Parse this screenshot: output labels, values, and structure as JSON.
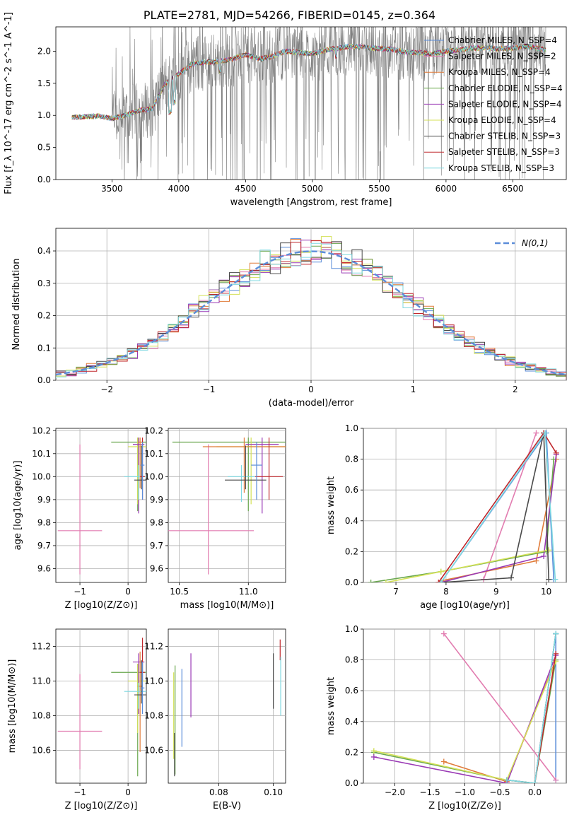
{
  "title": "PLATE=2781, MJD=54266, FIBERID=0145, z=0.364",
  "colors": {
    "axes": "#000000",
    "grid": "#b0b0b0",
    "spectrum_data": "#808080",
    "normal_curve": "#5b8dd9"
  },
  "chart_data": [
    {
      "id": "spectrum",
      "type": "line",
      "xlabel": "wavelength [Angstrom, rest frame]",
      "ylabel": "Flux [f_λ 10^-17 erg cm^-2 s^-1 A^-1]",
      "xlim": [
        3080,
        6900
      ],
      "ylim": [
        0,
        2.38
      ],
      "xticks": [
        3500,
        4000,
        4500,
        5000,
        5500,
        6000,
        6500
      ],
      "yticks": [
        0.0,
        0.5,
        1.0,
        1.5,
        2.0
      ],
      "grid": false,
      "legend_position": "upper right",
      "series": [
        {
          "name": "Chabrier MILES, N_SSP=4",
          "color": "#5b8dd9",
          "linewidth": 0.8
        },
        {
          "name": "Salpeter MILES, N_SSP=2",
          "color": "#e27cb0",
          "linewidth": 0.8
        },
        {
          "name": "Kroupa MILES, N_SSP=4",
          "color": "#e07b39",
          "linewidth": 0.8
        },
        {
          "name": "Chabrier ELODIE, N_SSP=4",
          "color": "#6aa84f",
          "linewidth": 0.8
        },
        {
          "name": "Salpeter ELODIE, N_SSP=4",
          "color": "#9a3ab5",
          "linewidth": 0.8
        },
        {
          "name": "Kroupa ELODIE, N_SSP=4",
          "color": "#d4e157",
          "linewidth": 0.8
        },
        {
          "name": "Chabrier STELIB, N_SSP=3",
          "color": "#4a4a4a",
          "linewidth": 0.8
        },
        {
          "name": "Salpeter STELIB, N_SSP=3",
          "color": "#c0282d",
          "linewidth": 0.8
        },
        {
          "name": "Kroupa STELIB, N_SSP=3",
          "color": "#7fd8e0",
          "linewidth": 0.8
        }
      ],
      "continuum_knots": {
        "x": [
          3200,
          3300,
          3400,
          3500,
          3600,
          3700,
          3800,
          3900,
          4000,
          4100,
          4200,
          4300,
          4400,
          4500,
          4600,
          4700,
          4800,
          4900,
          5000,
          5100,
          5200,
          5300,
          5400,
          5500,
          5600,
          5700,
          5800,
          5900,
          6000,
          6100,
          6200,
          6300,
          6400,
          6500,
          6600,
          6750
        ],
        "y": [
          0.97,
          0.98,
          0.99,
          0.95,
          1.0,
          1.08,
          1.1,
          1.5,
          1.65,
          1.8,
          1.83,
          1.84,
          1.88,
          1.95,
          1.88,
          1.92,
          2.0,
          1.98,
          1.96,
          2.02,
          2.05,
          2.08,
          2.06,
          2.04,
          2.03,
          1.98,
          1.98,
          1.96,
          2.0,
          2.02,
          2.05,
          2.05,
          2.04,
          2.05,
          2.08,
          2.02
        ]
      }
    },
    {
      "id": "residuals",
      "type": "bar",
      "xlabel": "(data-model)/error",
      "ylabel": "Normed distribution",
      "xlim": [
        -2.5,
        2.5
      ],
      "ylim": [
        0,
        0.47
      ],
      "xticks": [
        -2,
        -1,
        0,
        1,
        2
      ],
      "yticks": [
        0.0,
        0.1,
        0.2,
        0.3,
        0.4
      ],
      "grid": true,
      "legend_position": "upper right",
      "normal_curve_label": "N(0,1)",
      "bin_width": 0.1,
      "histogram_model": "N(0,1) with per-series deviations",
      "series_colors": [
        "#5b8dd9",
        "#e27cb0",
        "#e07b39",
        "#6aa84f",
        "#9a3ab5",
        "#d4e157",
        "#4a4a4a",
        "#c0282d",
        "#7fd8e0"
      ]
    },
    {
      "id": "age_vs_Z",
      "type": "scatter",
      "xlabel": "Z [log10(Z/Z⊙)]",
      "ylabel": "age [log10(age/yr)]",
      "xlim": [
        -1.5,
        0.38
      ],
      "ylim": [
        9.54,
        10.21
      ],
      "xticks": [
        -1,
        0
      ],
      "yticks": [
        9.6,
        9.7,
        9.8,
        9.9,
        10.0,
        10.1,
        10.2
      ],
      "grid": true,
      "points": [
        {
          "x": -1.0,
          "y": 9.765,
          "xerr": 0.46,
          "yerr_lo": 0.19,
          "yerr_hi": 0.375,
          "color": "#e27cb0"
        },
        {
          "x": 0.2,
          "y": 10.15,
          "xerr": 0.55,
          "yerr_lo": 0.3,
          "yerr_hi": 0.02,
          "color": "#6aa84f"
        },
        {
          "x": 0.2,
          "y": 10.13,
          "xerr": 0.2,
          "yerr_lo": 0.25,
          "yerr_hi": 0.04,
          "color": "#d4e157"
        },
        {
          "x": 0.22,
          "y": 10.14,
          "xerr": 0.12,
          "yerr_lo": 0.3,
          "yerr_hi": 0.03,
          "color": "#9a3ab5"
        },
        {
          "x": 0.25,
          "y": 10.15,
          "xerr": 0.05,
          "yerr_lo": 0.2,
          "yerr_hi": 0.02,
          "color": "#e07b39"
        },
        {
          "x": 0.22,
          "y": 10.0,
          "xerr": 0.3,
          "yerr_lo": 0.1,
          "yerr_hi": 0.05,
          "color": "#7fd8e0"
        },
        {
          "x": 0.28,
          "y": 9.985,
          "xerr": 0.15,
          "yerr_lo": 0.04,
          "yerr_hi": 0.15,
          "color": "#4a4a4a"
        },
        {
          "x": 0.3,
          "y": 10.0,
          "xerr": 0.05,
          "yerr_lo": 0.1,
          "yerr_hi": 0.17,
          "color": "#c0282d"
        },
        {
          "x": 0.3,
          "y": 10.05,
          "xerr": 0.04,
          "yerr_lo": 0.15,
          "yerr_hi": 0.1,
          "color": "#5b8dd9"
        }
      ]
    },
    {
      "id": "age_vs_mass",
      "type": "scatter",
      "xlabel": "mass [log10(M/M⊙)]",
      "ylabel": "",
      "xlim": [
        10.42,
        11.27
      ],
      "ylim": [
        9.54,
        10.21
      ],
      "xticks": [
        10.5,
        11.0
      ],
      "yticks": [
        9.6,
        9.7,
        9.8,
        9.9,
        10.0,
        10.1,
        10.2
      ],
      "grid": true,
      "points": [
        {
          "x": 10.71,
          "y": 9.765,
          "xerr": 0.33,
          "yerr_lo": 0.19,
          "yerr_hi": 0.375,
          "color": "#e27cb0"
        },
        {
          "x": 11.0,
          "y": 10.15,
          "xerr": 0.55,
          "yerr_lo": 0.3,
          "yerr_hi": 0.02,
          "color": "#6aa84f"
        },
        {
          "x": 11.02,
          "y": 10.13,
          "xerr": 0.25,
          "yerr_lo": 0.25,
          "yerr_hi": 0.04,
          "color": "#d4e157"
        },
        {
          "x": 11.1,
          "y": 10.14,
          "xerr": 0.12,
          "yerr_lo": 0.3,
          "yerr_hi": 0.03,
          "color": "#9a3ab5"
        },
        {
          "x": 10.97,
          "y": 10.13,
          "xerr": 0.3,
          "yerr_lo": 0.2,
          "yerr_hi": 0.04,
          "color": "#e07b39"
        },
        {
          "x": 10.95,
          "y": 10.0,
          "xerr": 0.1,
          "yerr_lo": 0.11,
          "yerr_hi": 0.05,
          "color": "#7fd8e0"
        },
        {
          "x": 10.98,
          "y": 9.985,
          "xerr": 0.15,
          "yerr_lo": 0.04,
          "yerr_hi": 0.15,
          "color": "#4a4a4a"
        },
        {
          "x": 11.15,
          "y": 10.0,
          "xerr": 0.1,
          "yerr_lo": 0.1,
          "yerr_hi": 0.17,
          "color": "#c0282d"
        },
        {
          "x": 11.06,
          "y": 10.05,
          "xerr": 0.04,
          "yerr_lo": 0.15,
          "yerr_hi": 0.1,
          "color": "#5b8dd9"
        }
      ]
    },
    {
      "id": "massweight_vs_age",
      "type": "line",
      "xlabel": "age [log10(age/yr)]",
      "ylabel": "mass weight",
      "xlim": [
        6.35,
        10.4
      ],
      "ylim": [
        0,
        1.0
      ],
      "xticks": [
        7,
        8,
        9,
        10
      ],
      "yticks": [
        0.0,
        0.2,
        0.4,
        0.6,
        0.8,
        1.0
      ],
      "grid": true,
      "series": [
        {
          "name": "Chabrier MILES",
          "color": "#5b8dd9",
          "x": [
            7.9,
            10.0,
            10.15
          ],
          "y": [
            0.0,
            0.97,
            0.02
          ]
        },
        {
          "name": "Salpeter MILES",
          "color": "#e27cb0",
          "x": [
            8.75,
            9.8
          ],
          "y": [
            0.02,
            0.97
          ]
        },
        {
          "name": "Kroupa MILES",
          "color": "#e07b39",
          "x": [
            7.9,
            9.8,
            10.2
          ],
          "y": [
            0.01,
            0.14,
            0.8
          ]
        },
        {
          "name": "Chabrier ELODIE",
          "color": "#6aa84f",
          "x": [
            6.5,
            7.9,
            10.0,
            10.15
          ],
          "y": [
            0.0,
            0.07,
            0.2,
            0.8
          ]
        },
        {
          "name": "Salpeter ELODIE",
          "color": "#9a3ab5",
          "x": [
            7.9,
            9.95,
            10.2
          ],
          "y": [
            0.0,
            0.17,
            0.83
          ]
        },
        {
          "name": "Kroupa ELODIE",
          "color": "#d4e157",
          "x": [
            6.8,
            7.9,
            10.05
          ],
          "y": [
            0.0,
            0.07,
            0.21
          ]
        },
        {
          "name": "Chabrier STELIB",
          "color": "#4a4a4a",
          "x": [
            7.9,
            9.3,
            9.95,
            10.05
          ],
          "y": [
            0.0,
            0.03,
            0.97,
            0.02
          ]
        },
        {
          "name": "Salpeter STELIB",
          "color": "#c0282d",
          "x": [
            7.85,
            9.95,
            10.2
          ],
          "y": [
            0.0,
            0.97,
            0.84
          ]
        },
        {
          "name": "Kroupa STELIB",
          "color": "#7fd8e0",
          "x": [
            7.9,
            9.98,
            10.18
          ],
          "y": [
            0.0,
            0.97,
            0.02
          ]
        }
      ]
    },
    {
      "id": "mass_vs_Z",
      "type": "scatter",
      "xlabel": "Z [log10(Z/Z⊙)]",
      "ylabel": "mass [log10(M/M⊙)]",
      "xlim": [
        -1.5,
        0.38
      ],
      "ylim": [
        10.41,
        11.3
      ],
      "xticks": [
        -1,
        0
      ],
      "yticks": [
        10.6,
        10.8,
        11.0,
        11.2
      ],
      "grid": true,
      "points": [
        {
          "x": -1.0,
          "y": 10.71,
          "xerr": 0.46,
          "yerr_lo": 0.22,
          "yerr_hi": 0.33,
          "color": "#e27cb0"
        },
        {
          "x": 0.2,
          "y": 11.05,
          "xerr": 0.55,
          "yerr_lo": 0.6,
          "yerr_hi": 0.05,
          "color": "#6aa84f"
        },
        {
          "x": 0.2,
          "y": 11.0,
          "xerr": 0.2,
          "yerr_lo": 0.3,
          "yerr_hi": 0.1,
          "color": "#d4e157"
        },
        {
          "x": 0.22,
          "y": 11.11,
          "xerr": 0.12,
          "yerr_lo": 0.3,
          "yerr_hi": 0.05,
          "color": "#9a3ab5"
        },
        {
          "x": 0.25,
          "y": 10.97,
          "xerr": 0.05,
          "yerr_lo": 0.38,
          "yerr_hi": 0.2,
          "color": "#e07b39"
        },
        {
          "x": 0.22,
          "y": 10.94,
          "xerr": 0.3,
          "yerr_lo": 0.1,
          "yerr_hi": 0.05,
          "color": "#7fd8e0"
        },
        {
          "x": 0.28,
          "y": 10.92,
          "xerr": 0.15,
          "yerr_lo": 0.05,
          "yerr_hi": 0.2,
          "color": "#4a4a4a"
        },
        {
          "x": 0.3,
          "y": 11.05,
          "xerr": 0.05,
          "yerr_lo": 0.05,
          "yerr_hi": 0.2,
          "color": "#c0282d"
        },
        {
          "x": 0.3,
          "y": 10.96,
          "xerr": 0.04,
          "yerr_lo": 0.15,
          "yerr_hi": 0.15,
          "color": "#5b8dd9"
        }
      ]
    },
    {
      "id": "mass_vs_ebv",
      "type": "scatter",
      "xlabel": "E(B-V)",
      "ylabel": "",
      "xlim": [
        0.0615,
        0.1045
      ],
      "ylim": [
        10.41,
        11.3
      ],
      "xticks": [
        0.08,
        0.1
      ],
      "yticks": [
        10.6,
        10.8,
        11.0,
        11.2
      ],
      "grid": true,
      "points": [
        {
          "x": 0.0635,
          "y": 10.75,
          "yerr_lo": 0.2,
          "yerr_hi": 0.3,
          "color": "#d4e157"
        },
        {
          "x": 0.064,
          "y": 10.86,
          "yerr_lo": 0.4,
          "yerr_hi": 0.23,
          "color": "#6aa84f"
        },
        {
          "x": 0.0638,
          "y": 10.6,
          "yerr_lo": 0.15,
          "yerr_hi": 0.1,
          "color": "#4a4a4a"
        },
        {
          "x": 0.0665,
          "y": 10.84,
          "yerr_lo": 0.22,
          "yerr_hi": 0.23,
          "color": "#5b8dd9"
        },
        {
          "x": 0.0698,
          "y": 10.98,
          "yerr_lo": 0.19,
          "yerr_hi": 0.18,
          "color": "#9a3ab5"
        },
        {
          "x": 0.1,
          "y": 11.0,
          "yerr_lo": 0.16,
          "yerr_hi": 0.16,
          "color": "#4a4a4a"
        },
        {
          "x": 0.1025,
          "y": 11.18,
          "yerr_lo": 0.06,
          "yerr_hi": 0.06,
          "color": "#c0282d"
        },
        {
          "x": 0.1027,
          "y": 10.97,
          "yerr_lo": 0.17,
          "yerr_hi": 0.17,
          "color": "#7fd8e0"
        }
      ]
    },
    {
      "id": "massweight_vs_Z",
      "type": "line",
      "xlabel": "Z [log10(Z/Z⊙)]",
      "ylabel": "mass weight",
      "xlim": [
        -2.45,
        0.45
      ],
      "ylim": [
        0,
        1.0
      ],
      "xticks": [
        -2.0,
        -1.5,
        -1.0,
        -0.5,
        0.0
      ],
      "yticks": [
        0.0,
        0.2,
        0.4,
        0.6,
        0.8,
        1.0
      ],
      "grid": true,
      "series": [
        {
          "name": "Chabrier MILES",
          "color": "#5b8dd9",
          "x": [
            0.0,
            0.3,
            0.3
          ],
          "y": [
            0.0,
            0.97,
            0.02
          ]
        },
        {
          "name": "Salpeter MILES",
          "color": "#e27cb0",
          "x": [
            -1.3,
            0.3
          ],
          "y": [
            0.97,
            0.02
          ]
        },
        {
          "name": "Kroupa MILES",
          "color": "#e07b39",
          "x": [
            -1.3,
            -0.4,
            0.3
          ],
          "y": [
            0.14,
            0.01,
            0.8
          ]
        },
        {
          "name": "Chabrier ELODIE",
          "color": "#6aa84f",
          "x": [
            -2.3,
            -0.4,
            0.0,
            0.3
          ],
          "y": [
            0.2,
            0.02,
            0.0,
            0.8
          ]
        },
        {
          "name": "Salpeter ELODIE",
          "color": "#9a3ab5",
          "x": [
            -2.3,
            -0.4,
            0.3
          ],
          "y": [
            0.17,
            0.0,
            0.83
          ]
        },
        {
          "name": "Kroupa ELODIE",
          "color": "#d4e157",
          "x": [
            -2.3,
            -0.4,
            0.3
          ],
          "y": [
            0.21,
            0.02,
            0.79
          ]
        },
        {
          "name": "Chabrier STELIB",
          "color": "#4a4a4a",
          "x": [
            -0.4,
            0.0,
            0.3
          ],
          "y": [
            0.02,
            0.0,
            0.97
          ]
        },
        {
          "name": "Salpeter STELIB",
          "color": "#c0282d",
          "x": [
            0.0,
            0.3
          ],
          "y": [
            0.0,
            0.84
          ]
        },
        {
          "name": "Kroupa STELIB",
          "color": "#7fd8e0",
          "x": [
            -0.4,
            0.0,
            0.3
          ],
          "y": [
            0.02,
            0.0,
            0.97
          ]
        }
      ]
    }
  ]
}
